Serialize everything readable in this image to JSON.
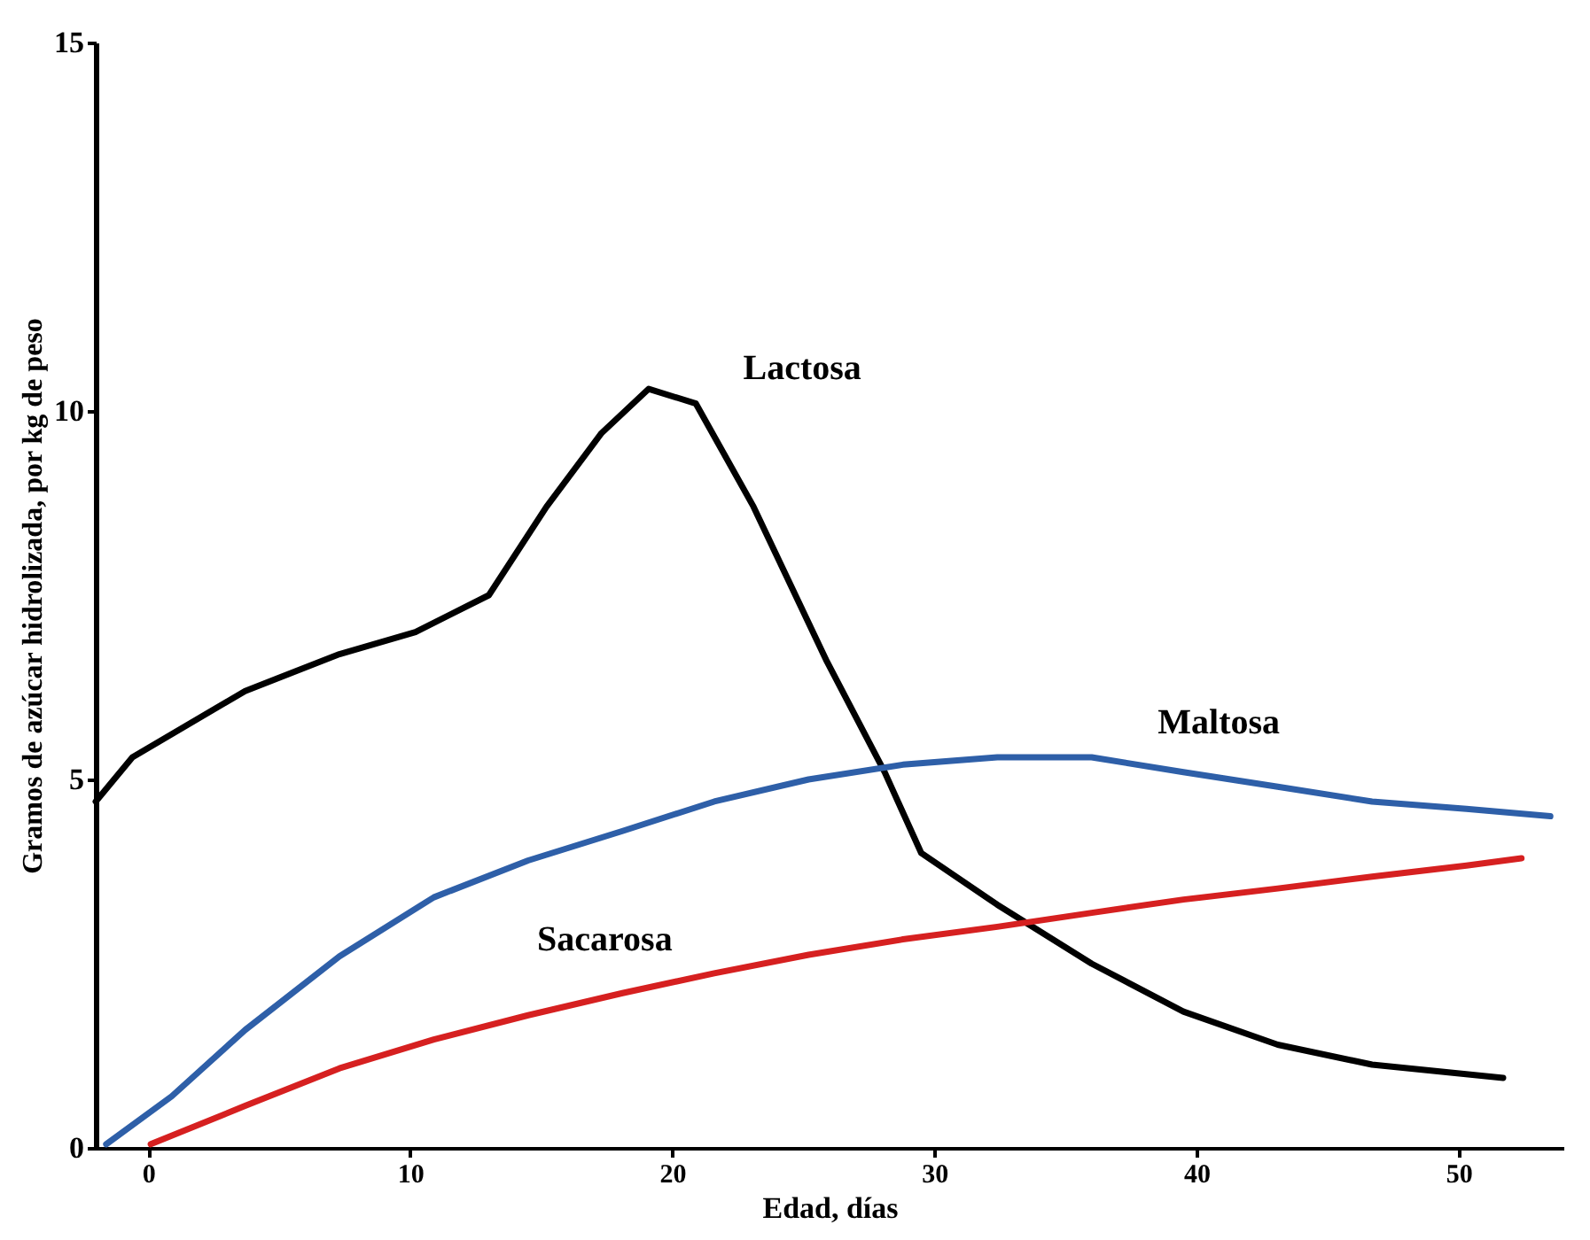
{
  "chart_data": {
    "type": "line",
    "xlabel": "Edad, días",
    "ylabel": "Gramos de azúcar hidrolizada, por kg de peso",
    "xlim": [
      -2,
      54
    ],
    "ylim": [
      0,
      15
    ],
    "xticks": [
      0,
      10,
      20,
      30,
      40,
      50
    ],
    "yticks": [
      0,
      5,
      10,
      15
    ],
    "grid": false,
    "legend": false,
    "marker": "none",
    "line_style": "solid",
    "series": [
      {
        "name": "Lactosa",
        "color": "#000000",
        "x": [
          -2.0,
          -0.6,
          3.7,
          7.3,
          10.2,
          13.0,
          15.2,
          17.3,
          19.1,
          20.9,
          23.1,
          25.9,
          28.1,
          29.5,
          32.4,
          36.0,
          39.5,
          43.1,
          46.7,
          51.7
        ],
        "values": [
          4.7,
          5.3,
          6.2,
          6.7,
          7.0,
          7.5,
          8.7,
          9.7,
          10.3,
          10.1,
          8.7,
          6.6,
          5.1,
          4.0,
          3.3,
          2.5,
          1.85,
          1.4,
          1.13,
          0.95
        ]
      },
      {
        "name": "Maltosa",
        "color": "#2e5fa8",
        "x": [
          -1.6,
          0.9,
          3.7,
          7.3,
          10.9,
          14.5,
          18.1,
          21.6,
          25.2,
          28.8,
          32.4,
          36.0,
          39.5,
          43.1,
          46.7,
          50.3,
          53.5
        ],
        "values": [
          0.05,
          0.7,
          1.6,
          2.6,
          3.4,
          3.9,
          4.3,
          4.7,
          5.0,
          5.2,
          5.3,
          5.3,
          5.1,
          4.9,
          4.7,
          4.6,
          4.5
        ]
      },
      {
        "name": "Sacarosa",
        "color": "#d62020",
        "x": [
          0.1,
          3.7,
          7.3,
          10.9,
          14.5,
          18.1,
          21.6,
          25.2,
          28.8,
          32.4,
          36.0,
          39.5,
          43.1,
          46.7,
          50.3,
          52.4
        ],
        "values": [
          0.05,
          0.57,
          1.08,
          1.47,
          1.8,
          2.1,
          2.37,
          2.62,
          2.83,
          3.0,
          3.19,
          3.37,
          3.52,
          3.68,
          3.83,
          3.93
        ]
      }
    ]
  }
}
